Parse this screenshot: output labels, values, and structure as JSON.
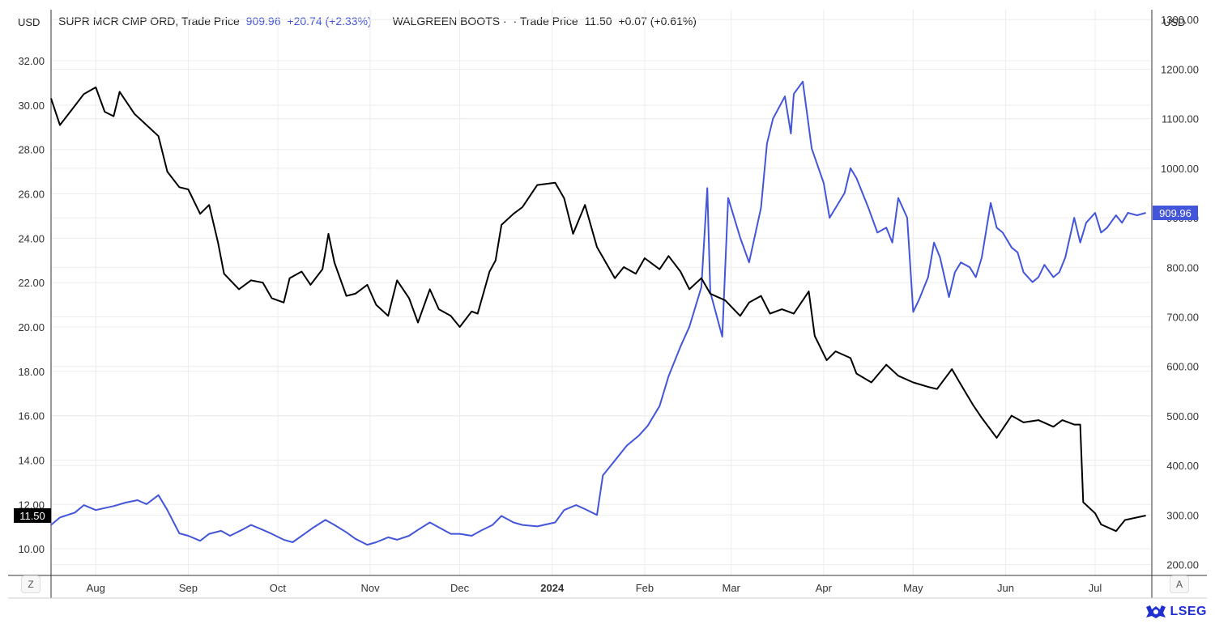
{
  "left_currency": "USD",
  "right_currency": "USD",
  "legend": {
    "s1_name": "SUPR MCR CMP ORD, Trade Price",
    "s1_price": "909.96",
    "s1_change": "+20.74 (+2.33%)",
    "s2_name": "WALGREEN BOOTS ·",
    "s2_label": "· Trade Price",
    "s2_price": "11.50",
    "s2_change": "+0.07 (+0.61%)"
  },
  "corner_left": "Z",
  "corner_right": "A",
  "logo_text": "LSEG",
  "colors": {
    "blue": "#4355d9",
    "black": "#000000",
    "grid": "#ececec"
  },
  "chart_data": {
    "type": "line",
    "x_range": [
      "2023-07-17",
      "2024-07-20"
    ],
    "x_tick_labels": [
      {
        "date": "2023-08-01",
        "label": "Aug",
        "bold": false
      },
      {
        "date": "2023-09-01",
        "label": "Sep",
        "bold": false
      },
      {
        "date": "2023-10-01",
        "label": "Oct",
        "bold": false
      },
      {
        "date": "2023-11-01",
        "label": "Nov",
        "bold": false
      },
      {
        "date": "2023-12-01",
        "label": "Dec",
        "bold": false
      },
      {
        "date": "2024-01-01",
        "label": "2024",
        "bold": true
      },
      {
        "date": "2024-02-01",
        "label": "Feb",
        "bold": false
      },
      {
        "date": "2024-03-01",
        "label": "Mar",
        "bold": false
      },
      {
        "date": "2024-04-01",
        "label": "Apr",
        "bold": false
      },
      {
        "date": "2024-05-01",
        "label": "May",
        "bold": false
      },
      {
        "date": "2024-06-01",
        "label": "Jun",
        "bold": false
      },
      {
        "date": "2024-07-01",
        "label": "Jul",
        "bold": false
      }
    ],
    "left_axis": {
      "range": [
        8.8,
        34.3
      ],
      "tick_values": [
        10,
        12,
        14,
        16,
        18,
        20,
        22,
        24,
        26,
        28,
        30,
        32
      ],
      "tick_labels": [
        "10.00",
        "12.00",
        "14.00",
        "16.00",
        "18.00",
        "20.00",
        "22.00",
        "24.00",
        "26.00",
        "28.00",
        "30.00",
        "32.00"
      ],
      "last_value_label": "11.50"
    },
    "right_axis": {
      "range": [
        178,
        1320
      ],
      "tick_values": [
        200,
        300,
        400,
        500,
        600,
        700,
        800,
        900,
        1000,
        1100,
        1200,
        1300
      ],
      "tick_labels": [
        "200.00",
        "300.00",
        "400.00",
        "500.00",
        "600.00",
        "700.00",
        "800.00",
        "900.00",
        "1000.00",
        "1100.00",
        "1200.00",
        "1300.00"
      ],
      "last_value_label": "909.96"
    },
    "grid": true,
    "series": [
      {
        "name": "SUPR MCR CMP ORD, Trade Price",
        "axis": "right",
        "color": "#4355d9",
        "points": [
          [
            "2023-07-17",
            280
          ],
          [
            "2023-07-20",
            295
          ],
          [
            "2023-07-25",
            305
          ],
          [
            "2023-07-28",
            320
          ],
          [
            "2023-08-01",
            310
          ],
          [
            "2023-08-07",
            318
          ],
          [
            "2023-08-11",
            325
          ],
          [
            "2023-08-15",
            330
          ],
          [
            "2023-08-18",
            322
          ],
          [
            "2023-08-22",
            340
          ],
          [
            "2023-08-25",
            310
          ],
          [
            "2023-08-29",
            263
          ],
          [
            "2023-09-01",
            258
          ],
          [
            "2023-09-05",
            248
          ],
          [
            "2023-09-08",
            262
          ],
          [
            "2023-09-12",
            268
          ],
          [
            "2023-09-15",
            258
          ],
          [
            "2023-09-19",
            270
          ],
          [
            "2023-09-22",
            280
          ],
          [
            "2023-09-26",
            270
          ],
          [
            "2023-09-29",
            262
          ],
          [
            "2023-10-03",
            250
          ],
          [
            "2023-10-06",
            245
          ],
          [
            "2023-10-10",
            262
          ],
          [
            "2023-10-13",
            275
          ],
          [
            "2023-10-17",
            290
          ],
          [
            "2023-10-20",
            280
          ],
          [
            "2023-10-24",
            265
          ],
          [
            "2023-10-27",
            252
          ],
          [
            "2023-10-31",
            240
          ],
          [
            "2023-11-03",
            245
          ],
          [
            "2023-11-07",
            255
          ],
          [
            "2023-11-10",
            250
          ],
          [
            "2023-11-14",
            258
          ],
          [
            "2023-11-17",
            270
          ],
          [
            "2023-11-21",
            285
          ],
          [
            "2023-11-24",
            275
          ],
          [
            "2023-11-28",
            262
          ],
          [
            "2023-12-01",
            262
          ],
          [
            "2023-12-05",
            258
          ],
          [
            "2023-12-08",
            268
          ],
          [
            "2023-12-12",
            280
          ],
          [
            "2023-12-15",
            298
          ],
          [
            "2023-12-19",
            285
          ],
          [
            "2023-12-22",
            280
          ],
          [
            "2023-12-27",
            277
          ],
          [
            "2024-01-02",
            285
          ],
          [
            "2024-01-05",
            310
          ],
          [
            "2024-01-09",
            320
          ],
          [
            "2024-01-12",
            312
          ],
          [
            "2024-01-16",
            300
          ],
          [
            "2024-01-18",
            380
          ],
          [
            "2024-01-22",
            410
          ],
          [
            "2024-01-26",
            440
          ],
          [
            "2024-01-30",
            460
          ],
          [
            "2024-02-02",
            480
          ],
          [
            "2024-02-06",
            520
          ],
          [
            "2024-02-09",
            580
          ],
          [
            "2024-02-13",
            640
          ],
          [
            "2024-02-16",
            680
          ],
          [
            "2024-02-20",
            760
          ],
          [
            "2024-02-22",
            960
          ],
          [
            "2024-02-23",
            750
          ],
          [
            "2024-02-27",
            660
          ],
          [
            "2024-02-29",
            940
          ],
          [
            "2024-03-04",
            860
          ],
          [
            "2024-03-07",
            810
          ],
          [
            "2024-03-11",
            920
          ],
          [
            "2024-03-13",
            1050
          ],
          [
            "2024-03-15",
            1100
          ],
          [
            "2024-03-19",
            1145
          ],
          [
            "2024-03-21",
            1070
          ],
          [
            "2024-03-22",
            1150
          ],
          [
            "2024-03-25",
            1175
          ],
          [
            "2024-03-28",
            1040
          ],
          [
            "2024-04-01",
            970
          ],
          [
            "2024-04-03",
            900
          ],
          [
            "2024-04-08",
            950
          ],
          [
            "2024-04-10",
            1000
          ],
          [
            "2024-04-12",
            980
          ],
          [
            "2024-04-16",
            920
          ],
          [
            "2024-04-19",
            870
          ],
          [
            "2024-04-22",
            880
          ],
          [
            "2024-04-24",
            850
          ],
          [
            "2024-04-26",
            940
          ],
          [
            "2024-04-29",
            900
          ],
          [
            "2024-05-01",
            710
          ],
          [
            "2024-05-03",
            735
          ],
          [
            "2024-05-06",
            780
          ],
          [
            "2024-05-08",
            850
          ],
          [
            "2024-05-10",
            820
          ],
          [
            "2024-05-13",
            740
          ],
          [
            "2024-05-15",
            790
          ],
          [
            "2024-05-17",
            810
          ],
          [
            "2024-05-20",
            800
          ],
          [
            "2024-05-22",
            780
          ],
          [
            "2024-05-24",
            820
          ],
          [
            "2024-05-27",
            930
          ],
          [
            "2024-05-29",
            880
          ],
          [
            "2024-05-31",
            870
          ],
          [
            "2024-06-03",
            840
          ],
          [
            "2024-06-05",
            830
          ],
          [
            "2024-06-07",
            790
          ],
          [
            "2024-06-10",
            770
          ],
          [
            "2024-06-12",
            780
          ],
          [
            "2024-06-14",
            805
          ],
          [
            "2024-06-17",
            780
          ],
          [
            "2024-06-19",
            790
          ],
          [
            "2024-06-21",
            820
          ],
          [
            "2024-06-24",
            900
          ],
          [
            "2024-06-26",
            850
          ],
          [
            "2024-06-28",
            890
          ],
          [
            "2024-07-01",
            910
          ],
          [
            "2024-07-03",
            870
          ],
          [
            "2024-07-05",
            880
          ],
          [
            "2024-07-08",
            905
          ],
          [
            "2024-07-10",
            890
          ],
          [
            "2024-07-12",
            910
          ],
          [
            "2024-07-15",
            905
          ],
          [
            "2024-07-18",
            909.96
          ]
        ]
      },
      {
        "name": "WALGREEN BOOTS · · Trade Price",
        "axis": "left",
        "color": "#000000",
        "points": [
          [
            "2023-07-17",
            30.3
          ],
          [
            "2023-07-20",
            29.1
          ],
          [
            "2023-07-24",
            29.8
          ],
          [
            "2023-07-28",
            30.5
          ],
          [
            "2023-08-01",
            30.8
          ],
          [
            "2023-08-04",
            29.7
          ],
          [
            "2023-08-07",
            29.5
          ],
          [
            "2023-08-09",
            30.6
          ],
          [
            "2023-08-14",
            29.6
          ],
          [
            "2023-08-18",
            29.1
          ],
          [
            "2023-08-22",
            28.6
          ],
          [
            "2023-08-25",
            27.0
          ],
          [
            "2023-08-29",
            26.3
          ],
          [
            "2023-09-01",
            26.2
          ],
          [
            "2023-09-05",
            25.1
          ],
          [
            "2023-09-08",
            25.5
          ],
          [
            "2023-09-11",
            23.8
          ],
          [
            "2023-09-13",
            22.4
          ],
          [
            "2023-09-18",
            21.7
          ],
          [
            "2023-09-22",
            22.1
          ],
          [
            "2023-09-26",
            22.0
          ],
          [
            "2023-09-29",
            21.3
          ],
          [
            "2023-10-03",
            21.1
          ],
          [
            "2023-10-05",
            22.2
          ],
          [
            "2023-10-09",
            22.5
          ],
          [
            "2023-10-12",
            21.9
          ],
          [
            "2023-10-16",
            22.6
          ],
          [
            "2023-10-18",
            24.2
          ],
          [
            "2023-10-20",
            22.9
          ],
          [
            "2023-10-24",
            21.4
          ],
          [
            "2023-10-27",
            21.5
          ],
          [
            "2023-10-31",
            21.9
          ],
          [
            "2023-11-03",
            21.0
          ],
          [
            "2023-11-07",
            20.5
          ],
          [
            "2023-11-10",
            22.1
          ],
          [
            "2023-11-14",
            21.3
          ],
          [
            "2023-11-17",
            20.2
          ],
          [
            "2023-11-21",
            21.7
          ],
          [
            "2023-11-24",
            20.8
          ],
          [
            "2023-11-28",
            20.5
          ],
          [
            "2023-12-01",
            20.0
          ],
          [
            "2023-12-05",
            20.7
          ],
          [
            "2023-12-07",
            20.6
          ],
          [
            "2023-12-11",
            22.5
          ],
          [
            "2023-12-13",
            23.0
          ],
          [
            "2023-12-15",
            24.6
          ],
          [
            "2023-12-19",
            25.1
          ],
          [
            "2023-12-22",
            25.4
          ],
          [
            "2023-12-27",
            26.4
          ],
          [
            "2024-01-02",
            26.5
          ],
          [
            "2024-01-05",
            25.8
          ],
          [
            "2024-01-08",
            24.2
          ],
          [
            "2024-01-12",
            25.5
          ],
          [
            "2024-01-16",
            23.6
          ],
          [
            "2024-01-22",
            22.2
          ],
          [
            "2024-01-25",
            22.7
          ],
          [
            "2024-01-29",
            22.4
          ],
          [
            "2024-02-01",
            23.1
          ],
          [
            "2024-02-06",
            22.6
          ],
          [
            "2024-02-09",
            23.2
          ],
          [
            "2024-02-13",
            22.5
          ],
          [
            "2024-02-16",
            21.7
          ],
          [
            "2024-02-20",
            22.2
          ],
          [
            "2024-02-23",
            21.5
          ],
          [
            "2024-02-28",
            21.2
          ],
          [
            "2024-03-04",
            20.5
          ],
          [
            "2024-03-07",
            21.1
          ],
          [
            "2024-03-11",
            21.4
          ],
          [
            "2024-03-14",
            20.6
          ],
          [
            "2024-03-18",
            20.8
          ],
          [
            "2024-03-22",
            20.6
          ],
          [
            "2024-03-27",
            21.6
          ],
          [
            "2024-03-29",
            19.6
          ],
          [
            "2024-04-02",
            18.5
          ],
          [
            "2024-04-05",
            18.9
          ],
          [
            "2024-04-10",
            18.6
          ],
          [
            "2024-04-12",
            17.9
          ],
          [
            "2024-04-17",
            17.5
          ],
          [
            "2024-04-22",
            18.3
          ],
          [
            "2024-04-26",
            17.8
          ],
          [
            "2024-05-01",
            17.5
          ],
          [
            "2024-05-06",
            17.3
          ],
          [
            "2024-05-09",
            17.2
          ],
          [
            "2024-05-14",
            18.1
          ],
          [
            "2024-05-17",
            17.4
          ],
          [
            "2024-05-21",
            16.5
          ],
          [
            "2024-05-24",
            15.9
          ],
          [
            "2024-05-29",
            15.0
          ],
          [
            "2024-06-03",
            16.0
          ],
          [
            "2024-06-07",
            15.7
          ],
          [
            "2024-06-12",
            15.8
          ],
          [
            "2024-06-17",
            15.5
          ],
          [
            "2024-06-20",
            15.8
          ],
          [
            "2024-06-24",
            15.6
          ],
          [
            "2024-06-26",
            15.6
          ],
          [
            "2024-06-27",
            12.1
          ],
          [
            "2024-07-01",
            11.6
          ],
          [
            "2024-07-03",
            11.1
          ],
          [
            "2024-07-08",
            10.8
          ],
          [
            "2024-07-11",
            11.3
          ],
          [
            "2024-07-18",
            11.5
          ]
        ]
      }
    ]
  }
}
